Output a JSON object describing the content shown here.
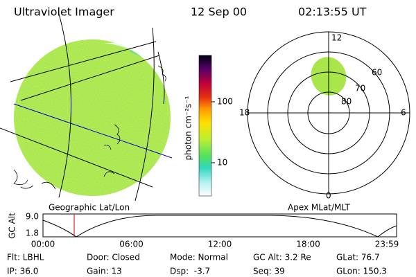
{
  "header": {
    "title": "Ultraviolet Imager",
    "date": "12 Sep 00",
    "time": "02:13:55 UT"
  },
  "colorbar": {
    "label": "photon cm⁻²s⁻¹",
    "ticks": [
      "100",
      "10"
    ]
  },
  "polar": {
    "mlt_labels": [
      "12",
      "18",
      "6",
      "0"
    ],
    "lat_labels": [
      "60",
      "70",
      "80"
    ]
  },
  "captions": {
    "left": "Geographic Lat/Lon",
    "right": "Apex MLat/MLT"
  },
  "orbit": {
    "ylabel": "GC Alt",
    "yticks": [
      "9.0",
      "1.8"
    ],
    "xticks": [
      "00:00",
      "06:00",
      "12:00",
      "18:00",
      "23:59"
    ]
  },
  "footer": {
    "rows": [
      [
        "Flt: LBHL",
        "Door: Closed",
        "Mode: Normal",
        "GC Alt: 3.2 Re",
        "GLat: 76.7"
      ],
      [
        "IP: 36.0",
        "Gain: 13",
        "Dsp:  -3.7",
        "Seq: 39",
        "GLon: 150.3"
      ]
    ]
  }
}
